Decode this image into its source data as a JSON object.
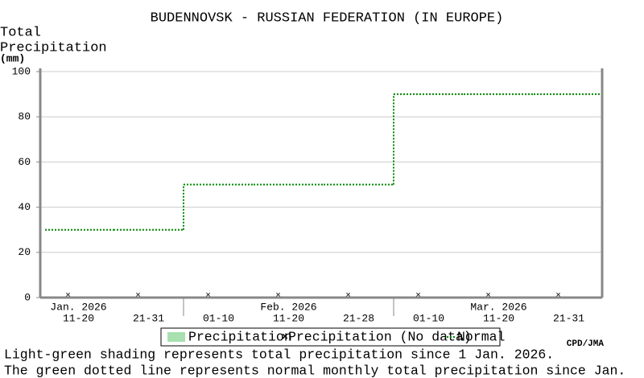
{
  "chart_data": {
    "type": "step",
    "title": "BUDENNOVSK - RUSSIAN FEDERATION (IN EUROPE)",
    "y_label": [
      "Total",
      "Precipitation",
      "(mm)"
    ],
    "categories": [
      "11-20",
      "21-31",
      "01-10",
      "11-20",
      "21-28",
      "01-10",
      "11-20",
      "21-31"
    ],
    "month_labels": [
      "Jan. 2026",
      null,
      null,
      "Feb. 2026",
      null,
      null,
      "Mar. 2026",
      null
    ],
    "series": [
      {
        "name": "Precipitation",
        "color": "#a8e0b0",
        "values": [
          null,
          null,
          null,
          null,
          null,
          null,
          null,
          null
        ]
      },
      {
        "name": "Precipitation (No data)",
        "color": "#000000",
        "values": [
          0,
          0,
          0,
          0,
          0,
          0,
          0,
          0
        ]
      },
      {
        "name": "Normal",
        "color": "#008800",
        "values": [
          30,
          30,
          50,
          50,
          50,
          90,
          90,
          90
        ]
      }
    ],
    "ylim": [
      0,
      100
    ],
    "yticks": [
      0,
      20,
      40,
      60,
      80,
      100
    ],
    "grid": true,
    "credit": "CPD/JMA",
    "notes": [
      "Light-green shading represents total precipitation since 1 Jan. 2026.",
      "The green dotted line represents normal monthly total precipitation since Jan."
    ]
  }
}
